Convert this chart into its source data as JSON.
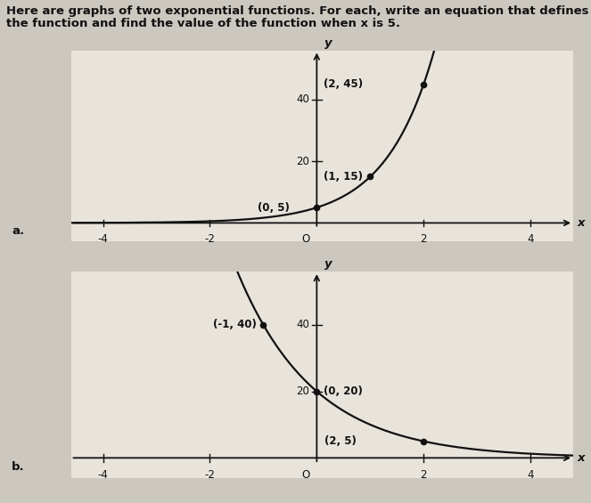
{
  "title_line1": "Here are graphs of two exponential functions. For each, write an equation that defines",
  "title_line2": "the function and find the value of the function when x is 5.",
  "title_fontsize": 9.5,
  "page_bg": "#ccc8c0",
  "graph_bg": "#e8e4dc",
  "graph_a": {
    "xlim": [
      -4.6,
      4.8
    ],
    "ylim": [
      -6,
      56
    ],
    "xticks": [
      -4,
      -2,
      2,
      4
    ],
    "yticks": [
      20,
      40
    ],
    "points": [
      [
        0,
        5
      ],
      [
        1,
        15
      ],
      [
        2,
        45
      ]
    ],
    "point_labels": [
      "(0, 5)",
      "(1, 15)",
      "(2, 45)"
    ],
    "label_offsets": [
      [
        -0.5,
        5,
        "right",
        "center"
      ],
      [
        0.12,
        15,
        "left",
        "center"
      ],
      [
        0.12,
        45,
        "left",
        "center"
      ]
    ],
    "label": "a."
  },
  "graph_b": {
    "xlim": [
      -4.6,
      4.8
    ],
    "ylim": [
      -6,
      56
    ],
    "xticks": [
      -4,
      -2,
      2,
      4
    ],
    "yticks": [
      20,
      40
    ],
    "points": [
      [
        -1,
        40
      ],
      [
        0,
        20
      ],
      [
        2,
        5
      ]
    ],
    "point_labels": [
      "(-1, 40)",
      "(0, 20)",
      "(2, 5)"
    ],
    "label_offsets": [
      [
        -1.12,
        40,
        "right",
        "center"
      ],
      [
        0.12,
        20,
        "left",
        "center"
      ],
      [
        0.15,
        5,
        "left",
        "center"
      ]
    ],
    "label": "b."
  },
  "curve_color": "#111111",
  "axis_color": "#111111",
  "point_color": "#111111",
  "text_color": "#111111",
  "label_fontsize": 8.5,
  "tick_fontsize": 8.5,
  "axis_label_fontsize": 9.5,
  "line_width": 1.6,
  "point_size": 4.5
}
